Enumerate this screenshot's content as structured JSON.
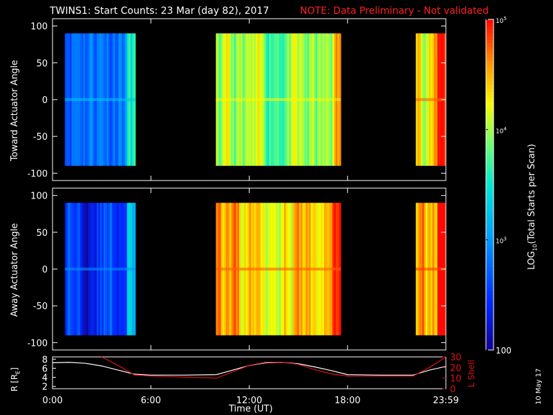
{
  "title": "TWINS1: Start Counts: 23 Mar (day  82), 2017",
  "note": "NOTE: Data Preliminary - Not validated",
  "date_stamp": "10 May 17",
  "colors": {
    "note": "#ff2020",
    "lshell": "#e01010",
    "rline": "#ffffff",
    "axes": "#ffffff"
  },
  "chart_data": [
    {
      "type": "heatmap",
      "panel": "toward",
      "ylabel": "Toward Actuator Angle",
      "ylim": [
        -110,
        110
      ],
      "yticks": [
        100,
        50,
        0,
        -50,
        -100
      ],
      "xlim_hours": [
        0,
        24
      ],
      "data_ylim": [
        -90,
        90
      ],
      "segments": [
        {
          "start": "0:45",
          "end": "5:03",
          "typical_log_counts": 2.9
        },
        {
          "start": "9:58",
          "end": "17:35",
          "typical_log_counts": 3.9
        },
        {
          "start": "22:10",
          "end": "23:59",
          "typical_log_counts": 4.4
        }
      ]
    },
    {
      "type": "heatmap",
      "panel": "away",
      "ylabel": "Away Actuator Angle",
      "ylim": [
        -110,
        110
      ],
      "yticks": [
        100,
        50,
        0,
        -50,
        -100
      ],
      "xlim_hours": [
        0,
        24
      ],
      "data_ylim": [
        -90,
        90
      ],
      "segments": [
        {
          "start": "0:45",
          "end": "5:03",
          "typical_log_counts": 2.6
        },
        {
          "start": "9:58",
          "end": "17:35",
          "typical_log_counts": 4.4
        },
        {
          "start": "22:10",
          "end": "23:59",
          "typical_log_counts": 4.5
        }
      ]
    },
    {
      "type": "line",
      "panel": "orbit",
      "xlabel": "Time (UT)",
      "xticks": [
        "0:00",
        "6:00",
        "12:00",
        "18:00",
        "23:59"
      ],
      "left_axis": {
        "label": "R [R",
        "label_sub": "E",
        "label_end": "]",
        "ylim": [
          1.5,
          8.5
        ],
        "ticks": [
          8,
          6,
          4,
          2
        ]
      },
      "right_axis": {
        "label": "L Shell",
        "ylim": [
          0,
          30
        ],
        "ticks": [
          30,
          20,
          10,
          0
        ]
      },
      "series": [
        {
          "axis": "left",
          "x": [
            0,
            1,
            2,
            3,
            4,
            5,
            6,
            8,
            10,
            11,
            12,
            13,
            14,
            15,
            16,
            17,
            18,
            20,
            22,
            23,
            24
          ],
          "y": [
            7.2,
            7.3,
            7.1,
            6.5,
            5.6,
            4.7,
            4.5,
            4.5,
            4.6,
            5.6,
            6.6,
            7.2,
            7.3,
            7.0,
            6.3,
            5.5,
            4.6,
            4.5,
            4.5,
            5.6,
            6.4
          ]
        },
        {
          "axis": "right",
          "x": [
            3,
            4,
            5,
            6,
            8,
            10,
            11,
            12,
            13,
            14,
            15,
            16,
            17,
            18,
            20,
            22,
            23,
            24
          ],
          "y": [
            30,
            22,
            13,
            12,
            11,
            10,
            16,
            22,
            25,
            25,
            23,
            18,
            14,
            12,
            12,
            12,
            20,
            30
          ]
        }
      ]
    },
    {
      "type": "colorbar",
      "label": "LOG",
      "label_sub": "10",
      "label_end": "(Total Starts per Scan)",
      "min": 100,
      "max": 100000,
      "ticks": [
        {
          "base": "10",
          "exp": "5",
          "value": 100000
        },
        {
          "base": "10",
          "exp": "4",
          "value": 10000
        },
        {
          "base": "10",
          "exp": "3",
          "value": 1000
        },
        {
          "base": "100",
          "exp": "",
          "value": 100
        }
      ]
    }
  ]
}
